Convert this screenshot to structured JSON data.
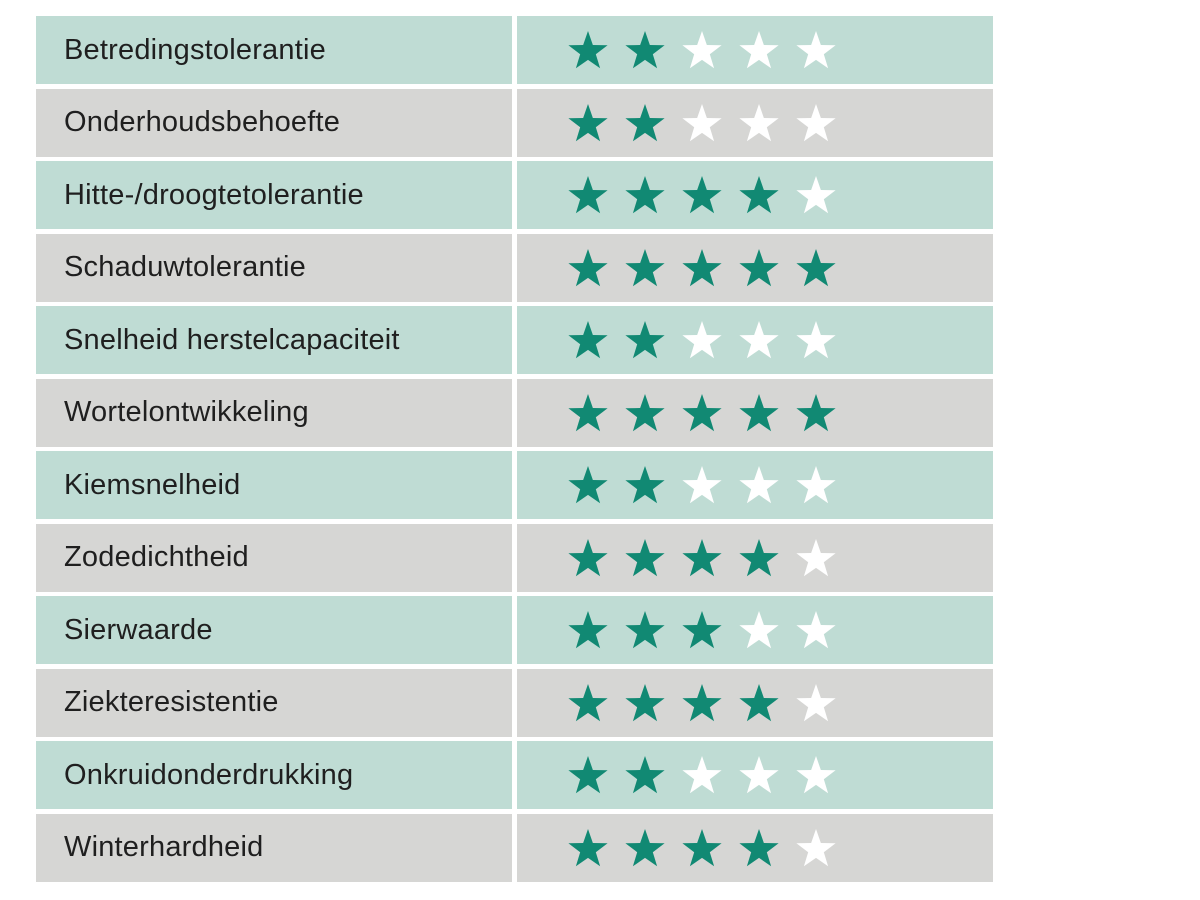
{
  "table": {
    "max_stars": 5,
    "rows": [
      {
        "label": "Betredingstolerantie",
        "rating": 2
      },
      {
        "label": "Onderhoudsbehoefte",
        "rating": 2
      },
      {
        "label": "Hitte-/droogtetolerantie",
        "rating": 4
      },
      {
        "label": "Schaduwtolerantie",
        "rating": 5
      },
      {
        "label": "Snelheid herstelcapaciteit",
        "rating": 2
      },
      {
        "label": "Wortelontwikkeling",
        "rating": 5
      },
      {
        "label": "Kiemsnelheid",
        "rating": 2
      },
      {
        "label": "Zodedichtheid",
        "rating": 4
      },
      {
        "label": "Sierwaarde",
        "rating": 3
      },
      {
        "label": "Ziekteresistentie",
        "rating": 4
      },
      {
        "label": "Onkruidonderdrukking",
        "rating": 2
      },
      {
        "label": "Winterhardheid",
        "rating": 4
      }
    ]
  },
  "colors": {
    "row_alt_mint": "#bfdcd4",
    "row_alt_gray": "#d6d6d4",
    "star_filled": "#118973",
    "star_empty": "#ffffff",
    "label_text": "#1f1f1f",
    "background": "#ffffff"
  },
  "chart_data": {
    "type": "table",
    "categories": [
      "Betredingstolerantie",
      "Onderhoudsbehoefte",
      "Hitte-/droogtetolerantie",
      "Schaduwtolerantie",
      "Snelheid herstelcapaciteit",
      "Wortelontwikkeling",
      "Kiemsnelheid",
      "Zodedichtheid",
      "Sierwaarde",
      "Ziekteresistentie",
      "Onkruidonderdrukking",
      "Winterhardheid"
    ],
    "values": [
      2,
      2,
      4,
      5,
      2,
      5,
      2,
      4,
      3,
      4,
      2,
      4
    ],
    "value_range": [
      0,
      5
    ],
    "value_unit": "stars"
  }
}
